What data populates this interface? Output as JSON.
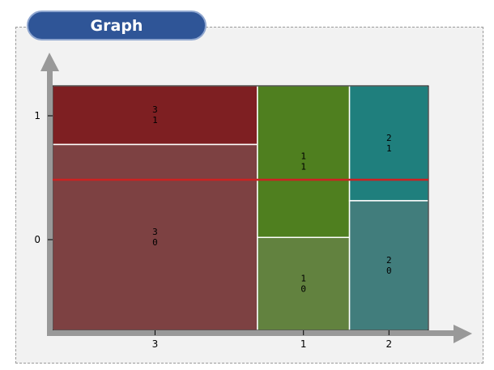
{
  "header": {
    "title": "Graph"
  },
  "chart_data": {
    "type": "mosaic",
    "x_categories": [
      "3",
      "1",
      "2"
    ],
    "y_ticks": [
      "1",
      "0"
    ],
    "column_fractions": [
      0.545,
      0.245,
      0.21
    ],
    "cells": [
      {
        "x": "3",
        "y": "1",
        "label_top": "3",
        "label_bottom": "1",
        "fraction": 0.24,
        "color": "#7e1f22"
      },
      {
        "x": "3",
        "y": "0",
        "label_top": "3",
        "label_bottom": "0",
        "fraction": 0.76,
        "color": "#7d4142"
      },
      {
        "x": "1",
        "y": "1",
        "label_top": "1",
        "label_bottom": "1",
        "fraction": 0.62,
        "color": "#4f7f1f"
      },
      {
        "x": "1",
        "y": "0",
        "label_top": "1",
        "label_bottom": "0",
        "fraction": 0.38,
        "color": "#62823f"
      },
      {
        "x": "2",
        "y": "1",
        "label_top": "2",
        "label_bottom": "1",
        "fraction": 0.47,
        "color": "#1f7f7d"
      },
      {
        "x": "2",
        "y": "0",
        "label_top": "2",
        "label_bottom": "0",
        "fraction": 0.53,
        "color": "#417d7c"
      }
    ],
    "reference_line": {
      "value": 0.48,
      "color": "#cc2222"
    },
    "axis_color": "#999999",
    "grid": false
  }
}
